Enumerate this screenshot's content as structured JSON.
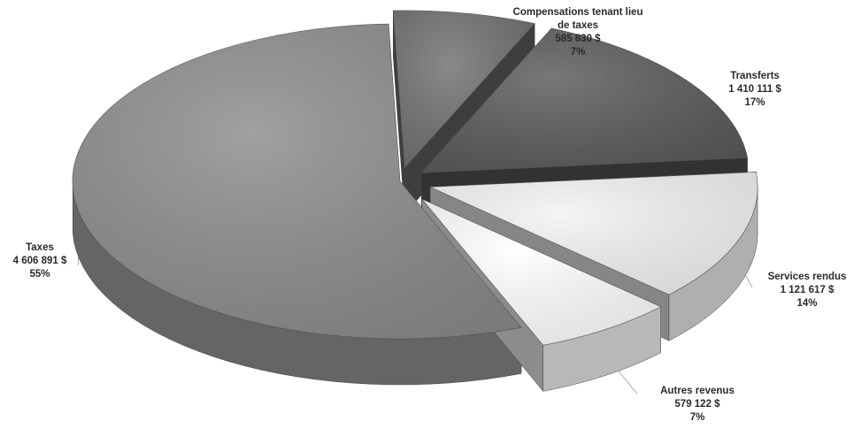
{
  "chart_data": {
    "type": "pie",
    "title": "",
    "slices": [
      {
        "label": "Compensations tenant lieu de taxes",
        "label_lines": [
          "Compensations tenant lieu",
          "de taxes"
        ],
        "amount": "585 830  $",
        "value": 585830,
        "percent": "7%",
        "color": "#707070"
      },
      {
        "label": "Transferts",
        "label_lines": [
          "Transferts"
        ],
        "amount": "1 410 111  $",
        "value": 1410111,
        "percent": "17%",
        "color": "#5a5a5a"
      },
      {
        "label": "Services rendus",
        "label_lines": [
          "Services rendus"
        ],
        "amount": "1 121 617  $",
        "value": 1121617,
        "percent": "14%",
        "color": "#f3f3f3"
      },
      {
        "label": "Autres revenus",
        "label_lines": [
          "Autres revenus"
        ],
        "amount": "579 122  $",
        "value": 579122,
        "percent": "7%",
        "color": "#ffffff"
      },
      {
        "label": "Taxes",
        "label_lines": [
          "Taxes"
        ],
        "amount": "4 606 891  $",
        "value": 4606891,
        "percent": "55%",
        "color": "#8c8c8c"
      }
    ]
  }
}
